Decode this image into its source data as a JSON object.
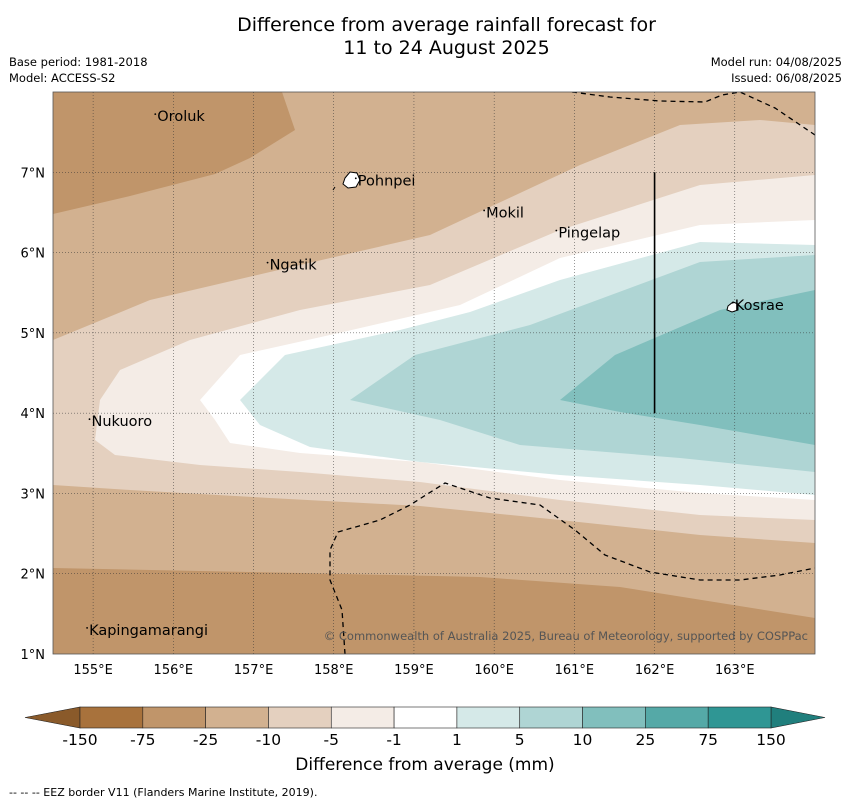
{
  "title_line1": "Difference from average rainfall forecast for",
  "title_line2": "11 to 24 August 2025",
  "base_period": "Base period: 1981-2018",
  "model": "Model: ACCESS-S2",
  "model_run": "Model run: 04/08/2025",
  "issued": "Issued: 06/08/2025",
  "copyright": "© Commonwealth of Australia 2025, Bureau of Meteorology, supported by COSPPac",
  "colorbar_title": "Difference from average (mm)",
  "footer_note": "--  --  -- EEZ border V11 (Flanders Marine Institute, 2019).",
  "map_data": {
    "lon_range": [
      154.5,
      164.0
    ],
    "lat_range": [
      1.0,
      8.0
    ],
    "lon_ticks": [
      "155°E",
      "156°E",
      "157°E",
      "158°E",
      "159°E",
      "160°E",
      "161°E",
      "162°E",
      "163°E"
    ],
    "lat_ticks": [
      "1°N",
      "2°N",
      "3°N",
      "4°N",
      "5°N",
      "6°N",
      "7°N"
    ],
    "places": [
      {
        "name": "Oroluk",
        "lon": 155.8,
        "lat": 7.65
      },
      {
        "name": "Pohnpei",
        "lon": 158.3,
        "lat": 6.85
      },
      {
        "name": "Mokil",
        "lon": 159.9,
        "lat": 6.45
      },
      {
        "name": "Pingelap",
        "lon": 160.8,
        "lat": 6.2
      },
      {
        "name": "Ngatik",
        "lon": 157.2,
        "lat": 5.8
      },
      {
        "name": "Kosrae",
        "lon": 163.0,
        "lat": 5.3
      },
      {
        "name": "Nukuoro",
        "lon": 154.98,
        "lat": 3.85
      },
      {
        "name": "Kapingamarangi",
        "lon": 154.95,
        "lat": 1.25
      }
    ],
    "section_line": {
      "lon": 162.0,
      "lat_from": 4.0,
      "lat_to": 7.0
    }
  },
  "colorbar": {
    "labels": [
      "-150",
      "-75",
      "-25",
      "-10",
      "-5",
      "-1",
      "1",
      "5",
      "10",
      "25",
      "75",
      "150"
    ],
    "colors": [
      "#a8723c",
      "#c0956a",
      "#d2b190",
      "#e4d0bf",
      "#f4ece6",
      "#ffffff",
      "#d5e9e8",
      "#afd5d4",
      "#81bfbd",
      "#55a9a7",
      "#2f9694"
    ],
    "under_color": "#8a5a2a",
    "over_color": "#207f7d"
  }
}
